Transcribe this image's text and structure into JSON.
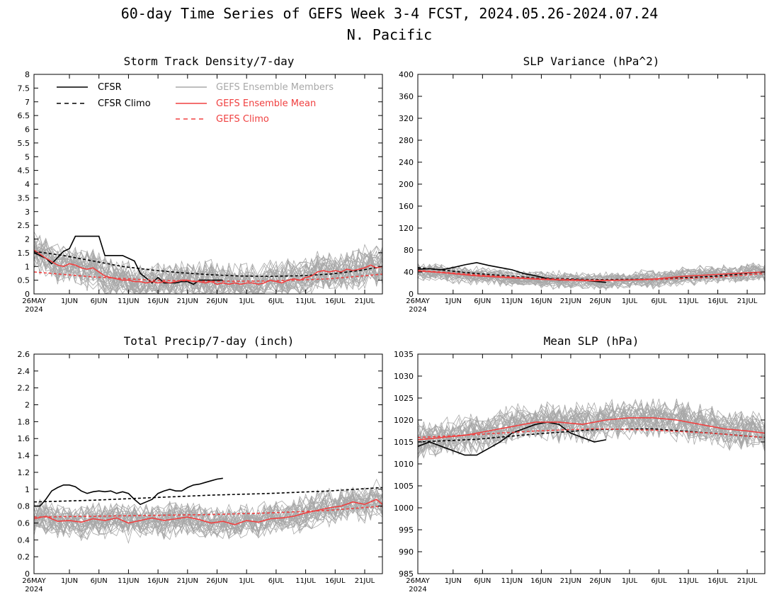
{
  "title": {
    "line1": "60-day Time Series of GEFS Week 3-4 FCST, 2024.05.26-2024.07.24",
    "line2": "N. Pacific"
  },
  "colors": {
    "cfsr": "#000000",
    "members": "#a8a8a8",
    "mean": "#f04040"
  },
  "x_ticks": [
    "26MAY",
    "1JUN",
    "6JUN",
    "11JUN",
    "16JUN",
    "21JUN",
    "26JUN",
    "1JUL",
    "6JUL",
    "11JUL",
    "16JUL",
    "21JUL"
  ],
  "x_year": "2024",
  "legend": {
    "cfsr": "CFSR",
    "cfsr_climo": "CFSR Climo",
    "members": "GEFS Ensemble Members",
    "mean": "GEFS Ensemble Mean",
    "gefs_climo": "GEFS Climo"
  },
  "chart_data": [
    {
      "type": "line",
      "title": "Storm Track Density/7-day",
      "x": "days since 2024-05-26 (0-59)",
      "ylim": [
        0,
        8
      ],
      "yticks": [
        "0",
        "0.5",
        "1",
        "1.5",
        "2",
        "2.5",
        "3",
        "3.5",
        "4",
        "4.5",
        "5",
        "5.5",
        "6",
        "6.5",
        "7",
        "7.5",
        "8"
      ],
      "series": [
        {
          "name": "CFSR",
          "x": [
            0,
            2,
            3,
            5,
            6,
            7,
            8,
            10,
            11,
            12,
            15,
            17,
            18,
            20,
            21,
            22,
            23,
            24,
            25,
            26,
            27,
            28,
            30,
            32
          ],
          "values": [
            1.5,
            1.3,
            1.1,
            1.55,
            1.65,
            2.1,
            2.1,
            2.1,
            2.1,
            1.4,
            1.4,
            1.2,
            0.75,
            0.4,
            0.6,
            0.4,
            0.4,
            0.4,
            0.45,
            0.45,
            0.35,
            0.5,
            0.5,
            0.5
          ]
        },
        {
          "name": "CFSR Climo",
          "x": [
            0,
            5,
            10,
            15,
            20,
            25,
            30,
            35,
            40,
            45,
            50,
            55,
            59
          ],
          "values": [
            1.55,
            1.4,
            1.2,
            1.0,
            0.87,
            0.77,
            0.7,
            0.65,
            0.64,
            0.66,
            0.72,
            0.85,
            1.0
          ]
        },
        {
          "name": "GEFS Ensemble Mean",
          "x": [
            0,
            2,
            4,
            5,
            6,
            7,
            8,
            9,
            10,
            11,
            12,
            13,
            14,
            15,
            16,
            17,
            18,
            19,
            20,
            21,
            22,
            23,
            24,
            25,
            26,
            27,
            28,
            29,
            30,
            31,
            32,
            33,
            34,
            35,
            36,
            37,
            38,
            39,
            40,
            41,
            42,
            43,
            44,
            45,
            46,
            47,
            48,
            49,
            50,
            51,
            52,
            53,
            54,
            55,
            56,
            57,
            58,
            59
          ],
          "values": [
            1.6,
            1.3,
            1.05,
            1.0,
            1.1,
            1.05,
            0.95,
            0.9,
            0.95,
            0.8,
            0.65,
            0.6,
            0.55,
            0.5,
            0.5,
            0.45,
            0.45,
            0.4,
            0.45,
            0.4,
            0.45,
            0.4,
            0.45,
            0.5,
            0.5,
            0.45,
            0.45,
            0.4,
            0.45,
            0.35,
            0.4,
            0.35,
            0.4,
            0.35,
            0.4,
            0.4,
            0.35,
            0.4,
            0.5,
            0.45,
            0.4,
            0.5,
            0.55,
            0.5,
            0.6,
            0.65,
            0.8,
            0.85,
            0.8,
            0.85,
            0.8,
            0.9,
            0.85,
            0.9,
            0.95,
            1.05,
            0.95,
            1.0
          ]
        },
        {
          "name": "GEFS Climo",
          "x": [
            0,
            10,
            20,
            30,
            40,
            50,
            59
          ],
          "values": [
            0.8,
            0.62,
            0.5,
            0.46,
            0.47,
            0.55,
            0.72
          ]
        }
      ]
    },
    {
      "type": "line",
      "title": "SLP Variance (hPa^2)",
      "x": "days since 2024-05-26 (0-59)",
      "ylim": [
        0,
        400
      ],
      "yticks": [
        "0",
        "40",
        "80",
        "120",
        "160",
        "200",
        "240",
        "280",
        "320",
        "360",
        "400"
      ],
      "series": [
        {
          "name": "CFSR",
          "x": [
            0,
            2,
            4,
            6,
            8,
            10,
            12,
            14,
            16,
            18,
            20,
            22,
            24,
            26,
            28,
            30,
            32
          ],
          "values": [
            45,
            46,
            44,
            48,
            53,
            57,
            52,
            48,
            44,
            37,
            33,
            28,
            25,
            26,
            25,
            23,
            21
          ]
        },
        {
          "name": "CFSR Climo",
          "x": [
            0,
            10,
            20,
            30,
            40,
            50,
            59
          ],
          "values": [
            48,
            37,
            29,
            26,
            27,
            32,
            40
          ]
        },
        {
          "name": "GEFS Ensemble Mean",
          "x": [
            0,
            5,
            10,
            15,
            20,
            25,
            30,
            35,
            40,
            45,
            50,
            55,
            59
          ],
          "values": [
            42,
            38,
            33,
            30,
            27,
            25,
            24,
            25,
            27,
            32,
            35,
            38,
            40
          ]
        },
        {
          "name": "GEFS Climo",
          "x": [
            0,
            10,
            20,
            30,
            40,
            50,
            59
          ],
          "values": [
            43,
            35,
            28,
            25,
            26,
            30,
            37
          ]
        }
      ]
    },
    {
      "type": "line",
      "title": "Total Precip/7-day (inch)",
      "x": "days since 2024-05-26 (0-59)",
      "ylim": [
        0,
        2.6
      ],
      "yticks": [
        "0",
        "0.2",
        "0.4",
        "0.6",
        "0.8",
        "1",
        "1.2",
        "1.4",
        "1.6",
        "1.8",
        "2",
        "2.2",
        "2.4",
        "2.6"
      ],
      "series": [
        {
          "name": "CFSR",
          "x": [
            0,
            1,
            2,
            3,
            4,
            5,
            6,
            7,
            8,
            9,
            10,
            11,
            12,
            13,
            14,
            15,
            16,
            17,
            18,
            19,
            20,
            21,
            22,
            23,
            24,
            25,
            26,
            27,
            28,
            29,
            30,
            31,
            32
          ],
          "values": [
            0.8,
            0.8,
            0.88,
            0.98,
            1.02,
            1.05,
            1.05,
            1.03,
            0.98,
            0.95,
            0.97,
            0.98,
            0.97,
            0.98,
            0.95,
            0.97,
            0.95,
            0.88,
            0.82,
            0.85,
            0.88,
            0.95,
            0.98,
            1.0,
            0.98,
            0.98,
            1.02,
            1.05,
            1.06,
            1.08,
            1.1,
            1.12,
            1.13
          ]
        },
        {
          "name": "CFSR Climo",
          "x": [
            0,
            10,
            20,
            30,
            40,
            50,
            59
          ],
          "values": [
            0.85,
            0.87,
            0.9,
            0.93,
            0.95,
            0.98,
            1.02
          ]
        },
        {
          "name": "GEFS Ensemble Mean",
          "x": [
            0,
            2,
            4,
            6,
            8,
            10,
            12,
            14,
            16,
            18,
            20,
            22,
            24,
            26,
            28,
            30,
            32,
            34,
            36,
            38,
            40,
            42,
            44,
            46,
            48,
            50,
            52,
            54,
            56,
            58,
            59
          ],
          "values": [
            0.65,
            0.68,
            0.62,
            0.63,
            0.61,
            0.65,
            0.63,
            0.66,
            0.6,
            0.63,
            0.66,
            0.63,
            0.65,
            0.67,
            0.64,
            0.6,
            0.62,
            0.58,
            0.63,
            0.61,
            0.65,
            0.66,
            0.68,
            0.72,
            0.75,
            0.78,
            0.8,
            0.85,
            0.82,
            0.88,
            0.82
          ]
        },
        {
          "name": "GEFS Climo",
          "x": [
            0,
            10,
            20,
            30,
            40,
            50,
            59
          ],
          "values": [
            0.67,
            0.68,
            0.69,
            0.7,
            0.72,
            0.75,
            0.8
          ]
        }
      ]
    },
    {
      "type": "line",
      "title": "Mean SLP (hPa)",
      "x": "days since 2024-05-26 (0-59)",
      "ylim": [
        985,
        1035
      ],
      "yticks": [
        "985",
        "990",
        "995",
        "1000",
        "1005",
        "1010",
        "1015",
        "1020",
        "1025",
        "1030",
        "1035"
      ],
      "series": [
        {
          "name": "CFSR",
          "x": [
            0,
            2,
            4,
            6,
            8,
            10,
            12,
            14,
            16,
            18,
            20,
            22,
            24,
            26,
            28,
            30,
            32
          ],
          "values": [
            1014,
            1015,
            1014,
            1013,
            1012,
            1012,
            1013.5,
            1015,
            1017,
            1018,
            1019,
            1019.5,
            1019,
            1017,
            1016,
            1015,
            1015.5
          ]
        },
        {
          "name": "CFSR Climo",
          "x": [
            0,
            10,
            20,
            30,
            40,
            50,
            59
          ],
          "values": [
            1015,
            1015.6,
            1016.8,
            1017.8,
            1018,
            1017,
            1016
          ]
        },
        {
          "name": "GEFS Ensemble Mean",
          "x": [
            0,
            4,
            8,
            12,
            16,
            20,
            24,
            28,
            32,
            36,
            40,
            44,
            48,
            52,
            56,
            59
          ],
          "values": [
            1015.5,
            1016,
            1016.5,
            1017.5,
            1018.5,
            1019.5,
            1019.5,
            1019,
            1020,
            1020.5,
            1020.5,
            1020,
            1019,
            1018,
            1017.5,
            1017
          ]
        },
        {
          "name": "GEFS Climo",
          "x": [
            0,
            10,
            20,
            30,
            40,
            50,
            59
          ],
          "values": [
            1016,
            1016.7,
            1017.5,
            1018,
            1017.7,
            1017,
            1016
          ]
        }
      ]
    }
  ]
}
